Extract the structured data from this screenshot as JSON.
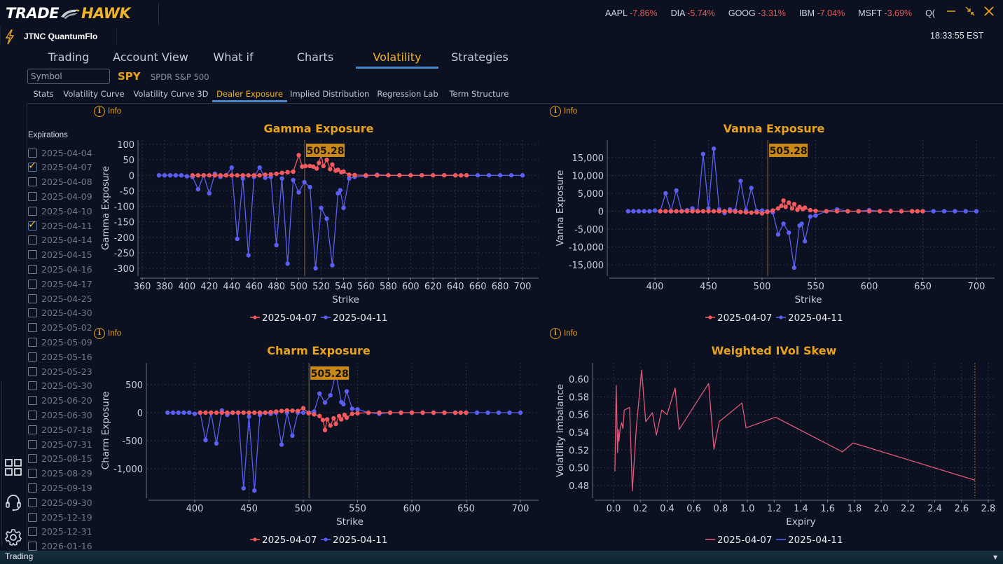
{
  "app": {
    "logo_part1": "TRADE",
    "logo_part2": "HAWK",
    "name": "JTNC QuantumFlo",
    "clock": "18:33:55 EST",
    "status_text": "Trading"
  },
  "tickers": [
    {
      "symbol": "AAPL",
      "change": "-7.86%"
    },
    {
      "symbol": "DIA",
      "change": "-5.74%"
    },
    {
      "symbol": "GOOG",
      "change": "-3.31%"
    },
    {
      "symbol": "IBM",
      "change": "-7.04%"
    },
    {
      "symbol": "MSFT",
      "change": "-3.69%"
    },
    {
      "symbol": "Q(",
      "change": ""
    }
  ],
  "window_controls": [
    "minimize-icon",
    "restore-icon",
    "close-icon"
  ],
  "main_tabs": [
    {
      "label": "Trading",
      "active": false
    },
    {
      "label": "Account View",
      "active": false
    },
    {
      "label": "What if",
      "active": false
    },
    {
      "label": "Charts",
      "active": false
    },
    {
      "label": "Volatility",
      "active": true
    },
    {
      "label": "Strategies",
      "active": false
    }
  ],
  "symbol": {
    "placeholder": "Symbol",
    "ticker": "SPY",
    "description": "SPDR S&P 500"
  },
  "sub_tabs": [
    {
      "label": "Stats",
      "active": false
    },
    {
      "label": "Volatility Curve",
      "active": false
    },
    {
      "label": "Volatility Curve 3D",
      "active": false
    },
    {
      "label": "Dealer Exposure",
      "active": true
    },
    {
      "label": "Implied Distribution",
      "active": false
    },
    {
      "label": "Regression Lab",
      "active": false
    },
    {
      "label": "Term Structure",
      "active": false
    }
  ],
  "expirations": {
    "title": "Expirations",
    "items": [
      {
        "date": "2025-04-04",
        "checked": false
      },
      {
        "date": "2025-04-07",
        "checked": true
      },
      {
        "date": "2025-04-08",
        "checked": false
      },
      {
        "date": "2025-04-09",
        "checked": false
      },
      {
        "date": "2025-04-10",
        "checked": false
      },
      {
        "date": "2025-04-11",
        "checked": true
      },
      {
        "date": "2025-04-14",
        "checked": false
      },
      {
        "date": "2025-04-15",
        "checked": false
      },
      {
        "date": "2025-04-16",
        "checked": false
      },
      {
        "date": "2025-04-17",
        "checked": false
      },
      {
        "date": "2025-04-25",
        "checked": false
      },
      {
        "date": "2025-04-30",
        "checked": false
      },
      {
        "date": "2025-05-02",
        "checked": false
      },
      {
        "date": "2025-05-09",
        "checked": false
      },
      {
        "date": "2025-05-16",
        "checked": false
      },
      {
        "date": "2025-05-23",
        "checked": false
      },
      {
        "date": "2025-05-30",
        "checked": false
      },
      {
        "date": "2025-06-20",
        "checked": false
      },
      {
        "date": "2025-06-30",
        "checked": false
      },
      {
        "date": "2025-07-18",
        "checked": false
      },
      {
        "date": "2025-07-31",
        "checked": false
      },
      {
        "date": "2025-08-15",
        "checked": false
      },
      {
        "date": "2025-08-29",
        "checked": false
      },
      {
        "date": "2025-09-19",
        "checked": false
      },
      {
        "date": "2025-09-30",
        "checked": false
      },
      {
        "date": "2025-12-19",
        "checked": false
      },
      {
        "date": "2025-12-31",
        "checked": false
      },
      {
        "date": "2026-01-16",
        "checked": false
      }
    ]
  },
  "side_icons": [
    "grid-icon",
    "headset-icon",
    "gear-icon"
  ],
  "info_label": "Info",
  "colors": {
    "series_a": "#f25a5e",
    "series_b": "#5a5ff0",
    "skew_line": "#e0587a",
    "accent": "#e8a21c",
    "spot_line": "#8a6a3a"
  },
  "chart_data": [
    {
      "id": "gamma",
      "type": "line",
      "title": "Gamma Exposure",
      "xlabel": "Strike",
      "ylabel": "Gamma Exposure",
      "xlim": [
        360,
        700
      ],
      "ylim": [
        -300,
        100
      ],
      "xticks": [
        360,
        380,
        400,
        420,
        440,
        460,
        480,
        500,
        520,
        540,
        560,
        580,
        600,
        620,
        640,
        660,
        680,
        700
      ],
      "xtick_labels": [
        "360",
        "380",
        "400",
        "420",
        "440",
        "460",
        "480",
        "500",
        "520",
        "540",
        "560",
        "580",
        "600",
        "620",
        "640",
        "660",
        "680",
        "700"
      ],
      "yticks": [
        100,
        50,
        0,
        -50,
        -100,
        -150,
        -200,
        -250,
        -300
      ],
      "ytick_labels": [
        "100",
        "50",
        "0",
        "-50",
        "-100",
        "-150",
        "-200",
        "-250",
        "-300"
      ],
      "spot": 505.28,
      "spot_label": "505.28",
      "legend": "bottom",
      "grid": true,
      "series": [
        {
          "name": "2025-04-07",
          "markers": true,
          "x": [
            405,
            410,
            415,
            420,
            425,
            430,
            435,
            440,
            445,
            450,
            455,
            460,
            465,
            470,
            475,
            480,
            485,
            490,
            495,
            500,
            503,
            506,
            510,
            513,
            516,
            518,
            520,
            522,
            525,
            528,
            530,
            533,
            535,
            538,
            540,
            545,
            550,
            560,
            570,
            580,
            590,
            600,
            610,
            620,
            630,
            640,
            645,
            650
          ],
          "y": [
            0,
            0,
            0,
            0,
            0,
            0,
            0,
            0,
            0,
            0,
            0,
            0,
            0,
            2,
            3,
            5,
            8,
            10,
            12,
            65,
            28,
            30,
            30,
            28,
            22,
            40,
            65,
            30,
            50,
            20,
            35,
            15,
            18,
            10,
            12,
            2,
            1,
            0,
            0,
            0,
            0,
            0,
            0,
            0,
            0,
            0,
            0,
            0
          ]
        },
        {
          "name": "2025-04-11",
          "markers": true,
          "x": [
            375,
            380,
            385,
            390,
            395,
            400,
            405,
            410,
            415,
            420,
            425,
            430,
            435,
            440,
            445,
            450,
            455,
            460,
            465,
            470,
            475,
            480,
            485,
            490,
            495,
            500,
            505,
            510,
            515,
            520,
            525,
            530,
            535,
            537,
            540,
            545,
            550,
            560,
            570,
            580,
            590,
            600,
            610,
            620,
            630,
            640,
            650,
            660,
            670,
            680,
            690,
            700
          ],
          "y": [
            0,
            0,
            0,
            0,
            0,
            -3,
            -5,
            -45,
            0,
            -58,
            5,
            -5,
            0,
            25,
            -205,
            -10,
            -258,
            -5,
            25,
            -8,
            -5,
            -225,
            -10,
            -285,
            -15,
            -55,
            -22,
            -38,
            -300,
            -105,
            -140,
            -290,
            -58,
            -48,
            -105,
            -10,
            -5,
            -2,
            2,
            0,
            0,
            0,
            0,
            0,
            0,
            0,
            0,
            0,
            0,
            0,
            0,
            0
          ]
        }
      ]
    },
    {
      "id": "vanna",
      "type": "line",
      "title": "Vanna Exposure",
      "xlabel": "Strike",
      "ylabel": "Vanna Exposure",
      "xlim": [
        357,
        715
      ],
      "ylim": [
        -18000,
        19000
      ],
      "xticks": [
        400,
        450,
        500,
        550,
        600,
        650,
        700
      ],
      "xtick_labels": [
        "400",
        "450",
        "500",
        "550",
        "600",
        "650",
        "700"
      ],
      "yticks": [
        15000,
        10000,
        5000,
        0,
        -5000,
        -10000,
        -15000
      ],
      "ytick_labels": [
        "15,000",
        "10,000",
        "5,000",
        "0",
        "-5,000",
        "-10,000",
        "-15,000"
      ],
      "spot": 505.28,
      "spot_label": "505.28",
      "legend": "bottom",
      "grid": true,
      "series": [
        {
          "name": "2025-04-07",
          "markers": true,
          "x": [
            405,
            410,
            415,
            420,
            425,
            430,
            435,
            440,
            445,
            450,
            455,
            460,
            465,
            470,
            475,
            480,
            485,
            490,
            495,
            500,
            505,
            510,
            515,
            518,
            520,
            522,
            525,
            528,
            530,
            533,
            535,
            538,
            540,
            545,
            550,
            560,
            570,
            580,
            590,
            600,
            610,
            620,
            630,
            640,
            645,
            650
          ],
          "y": [
            0,
            0,
            0,
            0,
            0,
            0,
            0,
            0,
            0,
            0,
            0,
            0,
            0,
            0,
            -100,
            -200,
            -300,
            -400,
            -300,
            -600,
            -200,
            200,
            800,
            1500,
            3000,
            1200,
            2400,
            800,
            2000,
            400,
            1200,
            600,
            1000,
            300,
            100,
            0,
            0,
            0,
            0,
            0,
            0,
            0,
            0,
            0,
            0,
            0
          ]
        },
        {
          "name": "2025-04-11",
          "markers": true,
          "x": [
            375,
            380,
            385,
            390,
            395,
            400,
            405,
            410,
            415,
            420,
            425,
            430,
            435,
            440,
            445,
            450,
            455,
            460,
            465,
            470,
            475,
            480,
            485,
            490,
            495,
            500,
            505,
            510,
            515,
            520,
            525,
            530,
            535,
            537,
            540,
            545,
            550,
            560,
            570,
            580,
            590,
            600,
            610,
            620,
            630,
            640,
            650,
            660,
            670,
            680,
            690,
            700
          ],
          "y": [
            0,
            0,
            0,
            0,
            0,
            200,
            0,
            5000,
            0,
            5800,
            0,
            300,
            800,
            0,
            16000,
            800,
            17500,
            500,
            -500,
            500,
            200,
            8500,
            200,
            6500,
            100,
            200,
            0,
            -300,
            -6500,
            -3500,
            -6000,
            -15800,
            -4000,
            -3500,
            -8400,
            -1500,
            -1200,
            0,
            500,
            0,
            0,
            300,
            0,
            0,
            0,
            0,
            0,
            0,
            0,
            0,
            0,
            0
          ]
        }
      ]
    },
    {
      "id": "charm",
      "type": "line",
      "title": "Charm Exposure",
      "xlabel": "Strike",
      "ylabel": "Charm Exposure",
      "xlim": [
        363,
        716
      ],
      "ylim": [
        -1480,
        880
      ],
      "xticks": [
        400,
        450,
        500,
        550,
        600,
        650,
        700
      ],
      "xtick_labels": [
        "400",
        "450",
        "500",
        "550",
        "600",
        "650",
        "700"
      ],
      "yticks": [
        500,
        0,
        -500,
        -1000
      ],
      "ytick_labels": [
        "500",
        "0",
        "-500",
        "-1,000"
      ],
      "spot": 505.28,
      "spot_label": "505.28",
      "legend": "bottom",
      "grid": true,
      "series": [
        {
          "name": "2025-04-07",
          "markers": true,
          "x": [
            405,
            410,
            415,
            420,
            425,
            430,
            435,
            440,
            445,
            450,
            455,
            460,
            465,
            470,
            475,
            480,
            485,
            490,
            495,
            500,
            505,
            510,
            515,
            518,
            520,
            522,
            525,
            528,
            530,
            533,
            535,
            538,
            540,
            545,
            550,
            560,
            570,
            580,
            590,
            600,
            610,
            620,
            630,
            640,
            645,
            650
          ],
          "y": [
            0,
            0,
            0,
            0,
            0,
            0,
            0,
            0,
            0,
            0,
            0,
            0,
            0,
            10,
            20,
            30,
            40,
            35,
            30,
            80,
            -10,
            -30,
            -60,
            -130,
            -310,
            -120,
            -230,
            -100,
            -200,
            -60,
            -120,
            -40,
            -90,
            -20,
            -10,
            0,
            0,
            0,
            0,
            0,
            0,
            0,
            0,
            0,
            0,
            0
          ]
        },
        {
          "name": "2025-04-11",
          "markers": true,
          "x": [
            375,
            380,
            385,
            390,
            395,
            400,
            405,
            410,
            415,
            420,
            425,
            430,
            435,
            440,
            445,
            450,
            455,
            460,
            465,
            470,
            475,
            480,
            485,
            490,
            495,
            500,
            505,
            510,
            515,
            520,
            525,
            530,
            535,
            537,
            540,
            545,
            550,
            560,
            570,
            580,
            590,
            600,
            610,
            620,
            630,
            640,
            650,
            660,
            670,
            680,
            690,
            700
          ],
          "y": [
            0,
            0,
            0,
            0,
            0,
            -20,
            0,
            -490,
            0,
            -550,
            40,
            -40,
            0,
            0,
            -1350,
            -70,
            -1390,
            -40,
            0,
            -20,
            0,
            -570,
            0,
            -410,
            0,
            0,
            0,
            20,
            340,
            180,
            310,
            700,
            190,
            150,
            380,
            70,
            60,
            0,
            -20,
            0,
            0,
            0,
            0,
            0,
            0,
            0,
            0,
            0,
            0,
            0,
            0,
            0
          ]
        }
      ]
    },
    {
      "id": "skew",
      "type": "line",
      "title": "Weighted IVol Skew",
      "xlabel": "Expiry",
      "ylabel": "Volatility Imbalance",
      "xlim": [
        -0.13,
        2.8
      ],
      "ylim": [
        0.468,
        0.616
      ],
      "xticks": [
        0.0,
        0.2,
        0.4,
        0.6,
        0.8,
        1.0,
        1.2,
        1.4,
        1.6,
        1.8,
        2.0,
        2.2,
        2.4,
        2.6,
        2.8
      ],
      "xtick_labels": [
        "0.0",
        "0.2",
        "0.4",
        "0.6",
        "0.8",
        "1.0",
        "1.2",
        "1.4",
        "1.6",
        "1.8",
        "2.0",
        "2.2",
        "2.4",
        "2.6",
        "2.8"
      ],
      "yticks": [
        0.6,
        0.58,
        0.56,
        0.54,
        0.52,
        0.5,
        0.48
      ],
      "ytick_labels": [
        "0.60",
        "0.58",
        "0.56",
        "0.54",
        "0.52",
        "0.50",
        "0.48"
      ],
      "marker_line_x": 2.7,
      "legend": "bottom",
      "grid": true,
      "series": [
        {
          "name": "2025-04-07",
          "markers": false,
          "x": [
            0.01,
            0.02,
            0.03,
            0.035,
            0.04,
            0.05,
            0.06,
            0.07,
            0.08,
            0.12,
            0.14,
            0.17,
            0.21,
            0.24,
            0.29,
            0.32,
            0.36,
            0.4,
            0.46,
            0.49,
            0.71,
            0.75,
            0.79,
            0.96,
            0.99,
            1.21,
            1.71,
            1.79,
            2.7
          ],
          "y": [
            0.496,
            0.593,
            0.517,
            0.543,
            0.53,
            0.545,
            0.551,
            0.544,
            0.565,
            0.568,
            0.474,
            0.545,
            0.61,
            0.552,
            0.562,
            0.537,
            0.565,
            0.56,
            0.59,
            0.543,
            0.595,
            0.521,
            0.552,
            0.573,
            0.545,
            0.557,
            0.518,
            0.528,
            0.486
          ]
        },
        {
          "name": "2025-04-11",
          "markers": false,
          "x": [],
          "y": []
        }
      ]
    }
  ]
}
